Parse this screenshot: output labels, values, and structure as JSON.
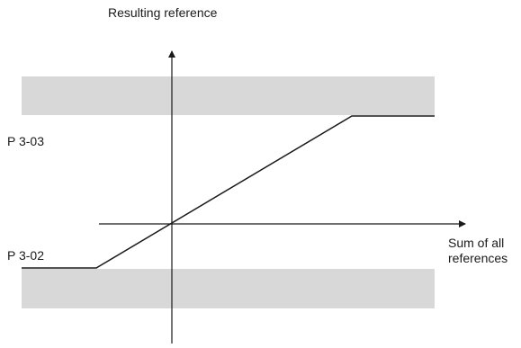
{
  "diagram": {
    "y_axis_label": "Resulting reference",
    "x_axis_label_line1": "Sum of all",
    "x_axis_label_line2": "references",
    "upper_limit_label": "P 3-03",
    "lower_limit_label": "P 3-02"
  },
  "colors": {
    "band_fill": "#d8d8d8",
    "line": "#1a1a1a",
    "axis": "#1a1a1a",
    "background": "#ffffff"
  }
}
